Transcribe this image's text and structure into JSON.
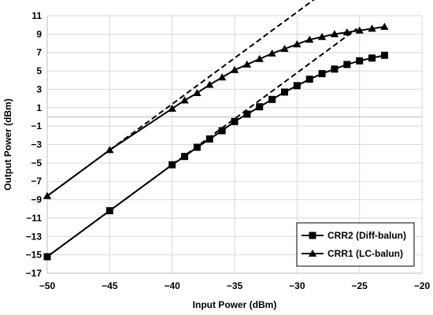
{
  "chart_data": {
    "type": "line",
    "title": "",
    "xlabel": "Input Power (dBm)",
    "ylabel": "Output Power (dBm)",
    "xlim": [
      -50,
      -20
    ],
    "ylim": [
      -17,
      11
    ],
    "xticks": [
      -50,
      -45,
      -40,
      -35,
      -30,
      -25,
      -20
    ],
    "yticks": [
      -17,
      -15,
      -13,
      -11,
      -9,
      -7,
      -5,
      -3,
      -1,
      1,
      3,
      5,
      7,
      9,
      11
    ],
    "xtick_labels": [
      "−50",
      "−45",
      "−40",
      "−35",
      "−30",
      "−25",
      "−20"
    ],
    "ytick_labels": [
      "−17",
      "−15",
      "−13",
      "−11",
      "−9",
      "−7",
      "−5",
      "−3",
      "−1",
      "1",
      "3",
      "5",
      "7",
      "9",
      "11"
    ],
    "grid": true,
    "legend_position": "bottom-right",
    "series": [
      {
        "name": "CRR2 (Diff-balun)",
        "marker": "square",
        "color": "#000000",
        "x": [
          -50,
          -45,
          -40,
          -39,
          -38,
          -37,
          -36,
          -35,
          -34,
          -33,
          -32,
          -31,
          -30,
          -29,
          -28,
          -27,
          -26,
          -25,
          -24,
          -23
        ],
        "y": [
          -15.2,
          -10.2,
          -5.2,
          -4.3,
          -3.3,
          -2.4,
          -1.5,
          -0.5,
          0.3,
          1.1,
          1.9,
          2.7,
          3.4,
          4.1,
          4.7,
          5.2,
          5.7,
          6.1,
          6.4,
          6.7
        ]
      },
      {
        "name": "CRR1 (LC-balun)",
        "marker": "triangle",
        "color": "#000000",
        "x": [
          -50,
          -45,
          -40,
          -39,
          -38,
          -37,
          -36,
          -35,
          -34,
          -33,
          -32,
          -31,
          -30,
          -29,
          -28,
          -27,
          -26,
          -25,
          -24,
          -23
        ],
        "y": [
          -8.6,
          -3.6,
          0.9,
          1.8,
          2.6,
          3.5,
          4.3,
          5.1,
          5.7,
          6.3,
          6.9,
          7.4,
          7.9,
          8.4,
          8.7,
          9.0,
          9.2,
          9.4,
          9.6,
          9.8
        ]
      }
    ],
    "reference_lines": [
      {
        "style": "dashed",
        "x": [
          -50,
          -27.8
        ],
        "y": [
          -8.6,
          13.6
        ]
      },
      {
        "style": "dashed",
        "x": [
          -50,
          -25.2
        ],
        "y": [
          -15.2,
          9.6
        ]
      }
    ]
  }
}
